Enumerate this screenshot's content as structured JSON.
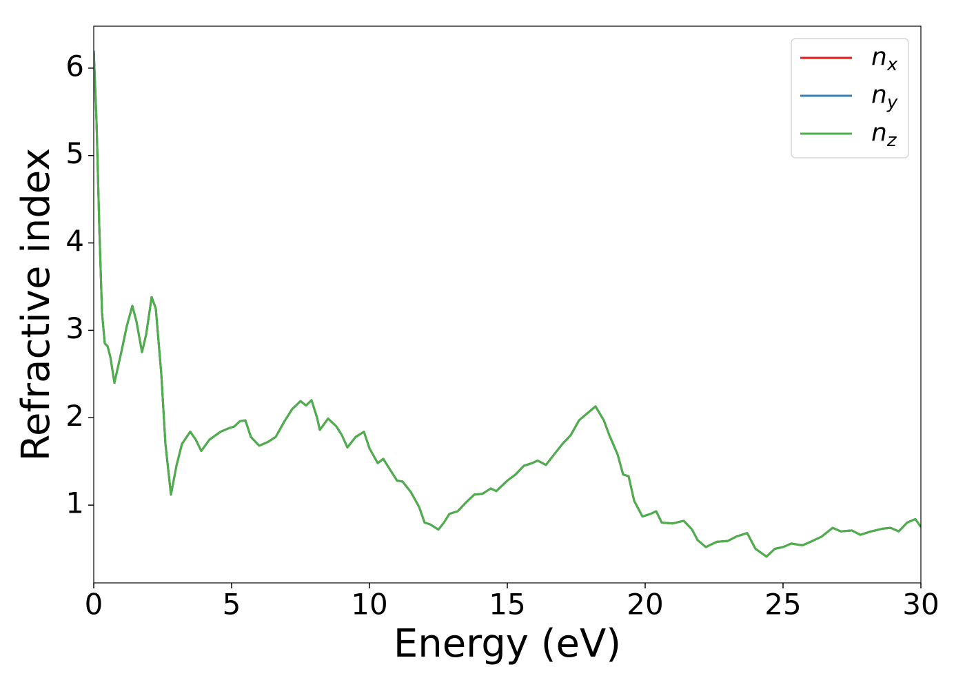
{
  "chart_data": {
    "type": "line",
    "xlabel": "Energy (eV)",
    "ylabel": "Refractive index",
    "x": [
      0,
      0.1,
      0.2,
      0.3,
      0.4,
      0.5,
      0.6,
      0.75,
      1.0,
      1.2,
      1.4,
      1.55,
      1.75,
      1.9,
      2.1,
      2.25,
      2.45,
      2.6,
      2.8,
      3.0,
      3.2,
      3.5,
      3.7,
      3.9,
      4.2,
      4.6,
      4.9,
      5.1,
      5.3,
      5.5,
      5.7,
      6.0,
      6.3,
      6.6,
      6.9,
      7.2,
      7.5,
      7.7,
      7.9,
      8.1,
      8.2,
      8.5,
      8.8,
      9.0,
      9.2,
      9.5,
      9.8,
      10.0,
      10.3,
      10.5,
      10.8,
      11.0,
      11.2,
      11.5,
      11.8,
      12.0,
      12.2,
      12.5,
      12.7,
      12.9,
      13.2,
      13.5,
      13.8,
      14.1,
      14.4,
      14.6,
      15.0,
      15.3,
      15.6,
      15.9,
      16.1,
      16.4,
      16.7,
      17.0,
      17.3,
      17.6,
      17.9,
      18.2,
      18.5,
      18.7,
      19.0,
      19.2,
      19.4,
      19.6,
      19.9,
      20.2,
      20.4,
      20.6,
      21.0,
      21.4,
      21.7,
      21.9,
      22.2,
      22.6,
      23.0,
      23.3,
      23.7,
      24.0,
      24.4,
      24.7,
      25.0,
      25.3,
      25.7,
      26.0,
      26.4,
      26.8,
      27.1,
      27.5,
      27.8,
      28.2,
      28.6,
      28.9,
      29.2,
      29.5,
      29.8,
      30
    ],
    "series": [
      {
        "name": "n_x",
        "color": "#e41a1c",
        "values": [
          6.2,
          5.4,
          4.2,
          3.2,
          2.85,
          2.82,
          2.7,
          2.4,
          2.75,
          3.05,
          3.28,
          3.1,
          2.75,
          2.95,
          3.38,
          3.25,
          2.5,
          1.7,
          1.12,
          1.45,
          1.7,
          1.84,
          1.75,
          1.62,
          1.75,
          1.84,
          1.88,
          1.9,
          1.96,
          1.97,
          1.78,
          1.68,
          1.72,
          1.78,
          1.95,
          2.1,
          2.19,
          2.14,
          2.2,
          2.0,
          1.86,
          1.99,
          1.9,
          1.8,
          1.66,
          1.78,
          1.84,
          1.65,
          1.48,
          1.53,
          1.38,
          1.28,
          1.27,
          1.15,
          0.98,
          0.8,
          0.78,
          0.72,
          0.8,
          0.9,
          0.93,
          1.03,
          1.12,
          1.13,
          1.19,
          1.16,
          1.28,
          1.35,
          1.45,
          1.48,
          1.51,
          1.46,
          1.58,
          1.7,
          1.8,
          1.97,
          2.05,
          2.13,
          1.97,
          1.8,
          1.58,
          1.35,
          1.33,
          1.05,
          0.87,
          0.9,
          0.93,
          0.8,
          0.79,
          0.82,
          0.72,
          0.6,
          0.52,
          0.58,
          0.59,
          0.64,
          0.68,
          0.5,
          0.41,
          0.5,
          0.52,
          0.56,
          0.54,
          0.58,
          0.64,
          0.74,
          0.7,
          0.71,
          0.66,
          0.7,
          0.73,
          0.74,
          0.7,
          0.8,
          0.84,
          0.75
        ]
      },
      {
        "name": "n_y",
        "color": "#377eb8",
        "values": [
          6.2,
          5.4,
          4.2,
          3.2,
          2.85,
          2.82,
          2.7,
          2.4,
          2.75,
          3.05,
          3.28,
          3.1,
          2.75,
          2.95,
          3.38,
          3.25,
          2.5,
          1.7,
          1.12,
          1.45,
          1.7,
          1.84,
          1.75,
          1.62,
          1.75,
          1.84,
          1.88,
          1.9,
          1.96,
          1.97,
          1.78,
          1.68,
          1.72,
          1.78,
          1.95,
          2.1,
          2.19,
          2.14,
          2.2,
          2.0,
          1.86,
          1.99,
          1.9,
          1.8,
          1.66,
          1.78,
          1.84,
          1.65,
          1.48,
          1.53,
          1.38,
          1.28,
          1.27,
          1.15,
          0.98,
          0.8,
          0.78,
          0.72,
          0.8,
          0.9,
          0.93,
          1.03,
          1.12,
          1.13,
          1.19,
          1.16,
          1.28,
          1.35,
          1.45,
          1.48,
          1.51,
          1.46,
          1.58,
          1.7,
          1.8,
          1.97,
          2.05,
          2.13,
          1.97,
          1.8,
          1.58,
          1.35,
          1.33,
          1.05,
          0.87,
          0.9,
          0.93,
          0.8,
          0.79,
          0.82,
          0.72,
          0.6,
          0.52,
          0.58,
          0.59,
          0.64,
          0.68,
          0.5,
          0.41,
          0.5,
          0.52,
          0.56,
          0.54,
          0.58,
          0.64,
          0.74,
          0.7,
          0.71,
          0.66,
          0.7,
          0.73,
          0.74,
          0.7,
          0.8,
          0.84,
          0.75
        ]
      },
      {
        "name": "n_z",
        "color": "#4daf4a",
        "values": [
          6.15,
          5.4,
          4.2,
          3.2,
          2.85,
          2.82,
          2.7,
          2.4,
          2.75,
          3.05,
          3.28,
          3.1,
          2.75,
          2.95,
          3.38,
          3.25,
          2.5,
          1.7,
          1.12,
          1.45,
          1.7,
          1.84,
          1.75,
          1.62,
          1.75,
          1.84,
          1.88,
          1.9,
          1.96,
          1.97,
          1.78,
          1.68,
          1.72,
          1.78,
          1.95,
          2.1,
          2.19,
          2.14,
          2.2,
          2.0,
          1.86,
          1.99,
          1.9,
          1.8,
          1.66,
          1.78,
          1.84,
          1.65,
          1.48,
          1.53,
          1.38,
          1.28,
          1.27,
          1.15,
          0.98,
          0.8,
          0.78,
          0.72,
          0.8,
          0.9,
          0.93,
          1.03,
          1.12,
          1.13,
          1.19,
          1.16,
          1.28,
          1.35,
          1.45,
          1.48,
          1.51,
          1.46,
          1.58,
          1.7,
          1.8,
          1.97,
          2.05,
          2.13,
          1.97,
          1.8,
          1.58,
          1.35,
          1.33,
          1.05,
          0.87,
          0.9,
          0.93,
          0.8,
          0.79,
          0.82,
          0.72,
          0.6,
          0.52,
          0.58,
          0.59,
          0.64,
          0.68,
          0.5,
          0.41,
          0.5,
          0.52,
          0.56,
          0.54,
          0.58,
          0.64,
          0.74,
          0.7,
          0.71,
          0.66,
          0.7,
          0.73,
          0.74,
          0.7,
          0.8,
          0.84,
          0.75
        ]
      }
    ],
    "xlim": [
      0,
      30
    ],
    "xticks": [
      0,
      5,
      10,
      15,
      20,
      25,
      30
    ],
    "ylim": [
      0.11,
      6.48
    ],
    "yticks": [
      1,
      2,
      3,
      4,
      5,
      6
    ],
    "grid": false,
    "legend": "upper right"
  }
}
